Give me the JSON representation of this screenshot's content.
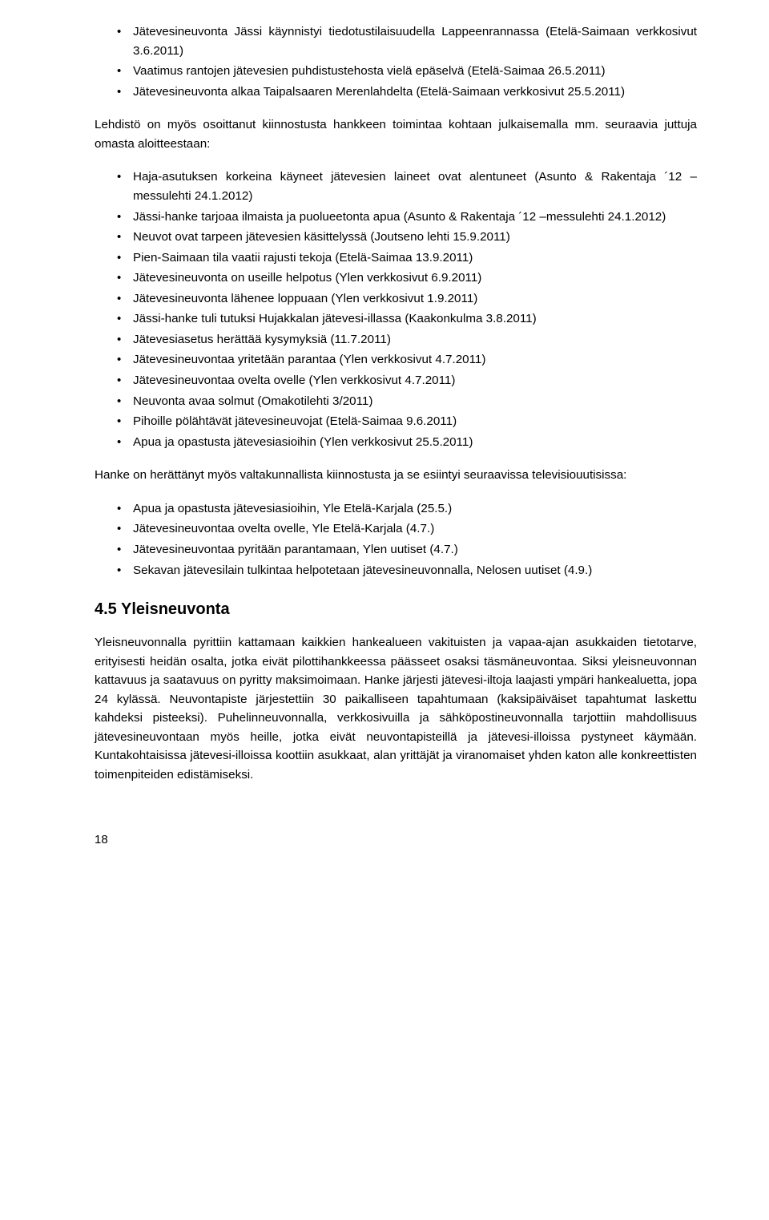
{
  "list1": {
    "items": [
      "Jätevesineuvonta Jässi käynnistyi tiedotustilaisuudella Lappeenrannassa (Etelä-Saimaan verkkosivut 3.6.2011)",
      "Vaatimus rantojen jätevesien puhdistustehosta vielä epäselvä (Etelä-Saimaa 26.5.2011)",
      "Jätevesineuvonta alkaa Taipalsaaren Merenlahdelta (Etelä-Saimaan verkkosivut 25.5.2011)"
    ]
  },
  "para1": "Lehdistö on myös osoittanut kiinnostusta hankkeen toimintaa kohtaan julkaisemalla mm. seuraavia juttuja omasta aloitteestaan:",
  "list2": {
    "items": [
      "Haja-asutuksen korkeina käyneet jätevesien laineet ovat alentuneet (Asunto & Rakentaja ´12 –messulehti 24.1.2012)",
      "Jässi-hanke tarjoaa ilmaista ja puolueetonta apua (Asunto & Rakentaja ´12 –messulehti 24.1.2012)",
      "Neuvot ovat tarpeen jätevesien käsittelyssä (Joutseno lehti 15.9.2011)",
      "Pien-Saimaan tila vaatii rajusti tekoja (Etelä-Saimaa 13.9.2011)",
      "Jätevesineuvonta on useille helpotus (Ylen verkkosivut 6.9.2011)",
      "Jätevesineuvonta lähenee loppuaan (Ylen verkkosivut 1.9.2011)",
      "Jässi-hanke tuli tutuksi Hujakkalan jätevesi-illassa (Kaakonkulma 3.8.2011)",
      "Jätevesiasetus herättää kysymyksiä (11.7.2011)",
      "Jätevesineuvontaa yritetään parantaa (Ylen verkkosivut 4.7.2011)",
      "Jätevesineuvontaa ovelta ovelle (Ylen verkkosivut 4.7.2011)",
      "Neuvonta avaa solmut (Omakotilehti 3/2011)",
      "Pihoille pölähtävät jätevesineuvojat (Etelä-Saimaa 9.6.2011)",
      "Apua ja opastusta jätevesiasioihin (Ylen verkkosivut 25.5.2011)"
    ]
  },
  "para2": "Hanke on herättänyt myös valtakunnallista kiinnostusta ja se esiintyi seuraavissa televisiouutisissa:",
  "list3": {
    "items": [
      "Apua ja opastusta jätevesiasioihin, Yle Etelä-Karjala (25.5.)",
      "Jätevesineuvontaa ovelta ovelle, Yle Etelä-Karjala (4.7.)",
      "Jätevesineuvontaa pyritään parantamaan, Ylen uutiset (4.7.)",
      "Sekavan jätevesilain tulkintaa helpotetaan jätevesineuvonnalla, Nelosen uutiset (4.9.)"
    ]
  },
  "heading": "4.5  Yleisneuvonta",
  "para3": "Yleisneuvonnalla pyrittiin kattamaan kaikkien hankealueen vakituisten ja vapaa-ajan asukkaiden tietotarve, erityisesti heidän osalta, jotka eivät pilottihankkeessa päässeet osaksi täsmäneuvontaa. Siksi yleisneuvonnan kattavuus ja saatavuus on pyritty maksimoimaan. Hanke järjesti jätevesi-iltoja laajasti ympäri hankealuetta, jopa 24 kylässä. Neuvontapiste järjestettiin 30 paikalliseen tapahtumaan (kaksipäiväiset tapahtumat laskettu kahdeksi pisteeksi). Puhelinneuvonnalla, verkkosivuilla ja sähköpostineuvonnalla tarjottiin mahdollisuus jätevesineuvontaan myös heille, jotka eivät neuvontapisteillä ja jätevesi-illoissa pystyneet käymään. Kuntakohtaisissa jätevesi-illoissa koottiin asukkaat, alan yrittäjät ja viranomaiset yhden katon alle konkreettisten toimenpiteiden edistämiseksi.",
  "pageNumber": "18"
}
